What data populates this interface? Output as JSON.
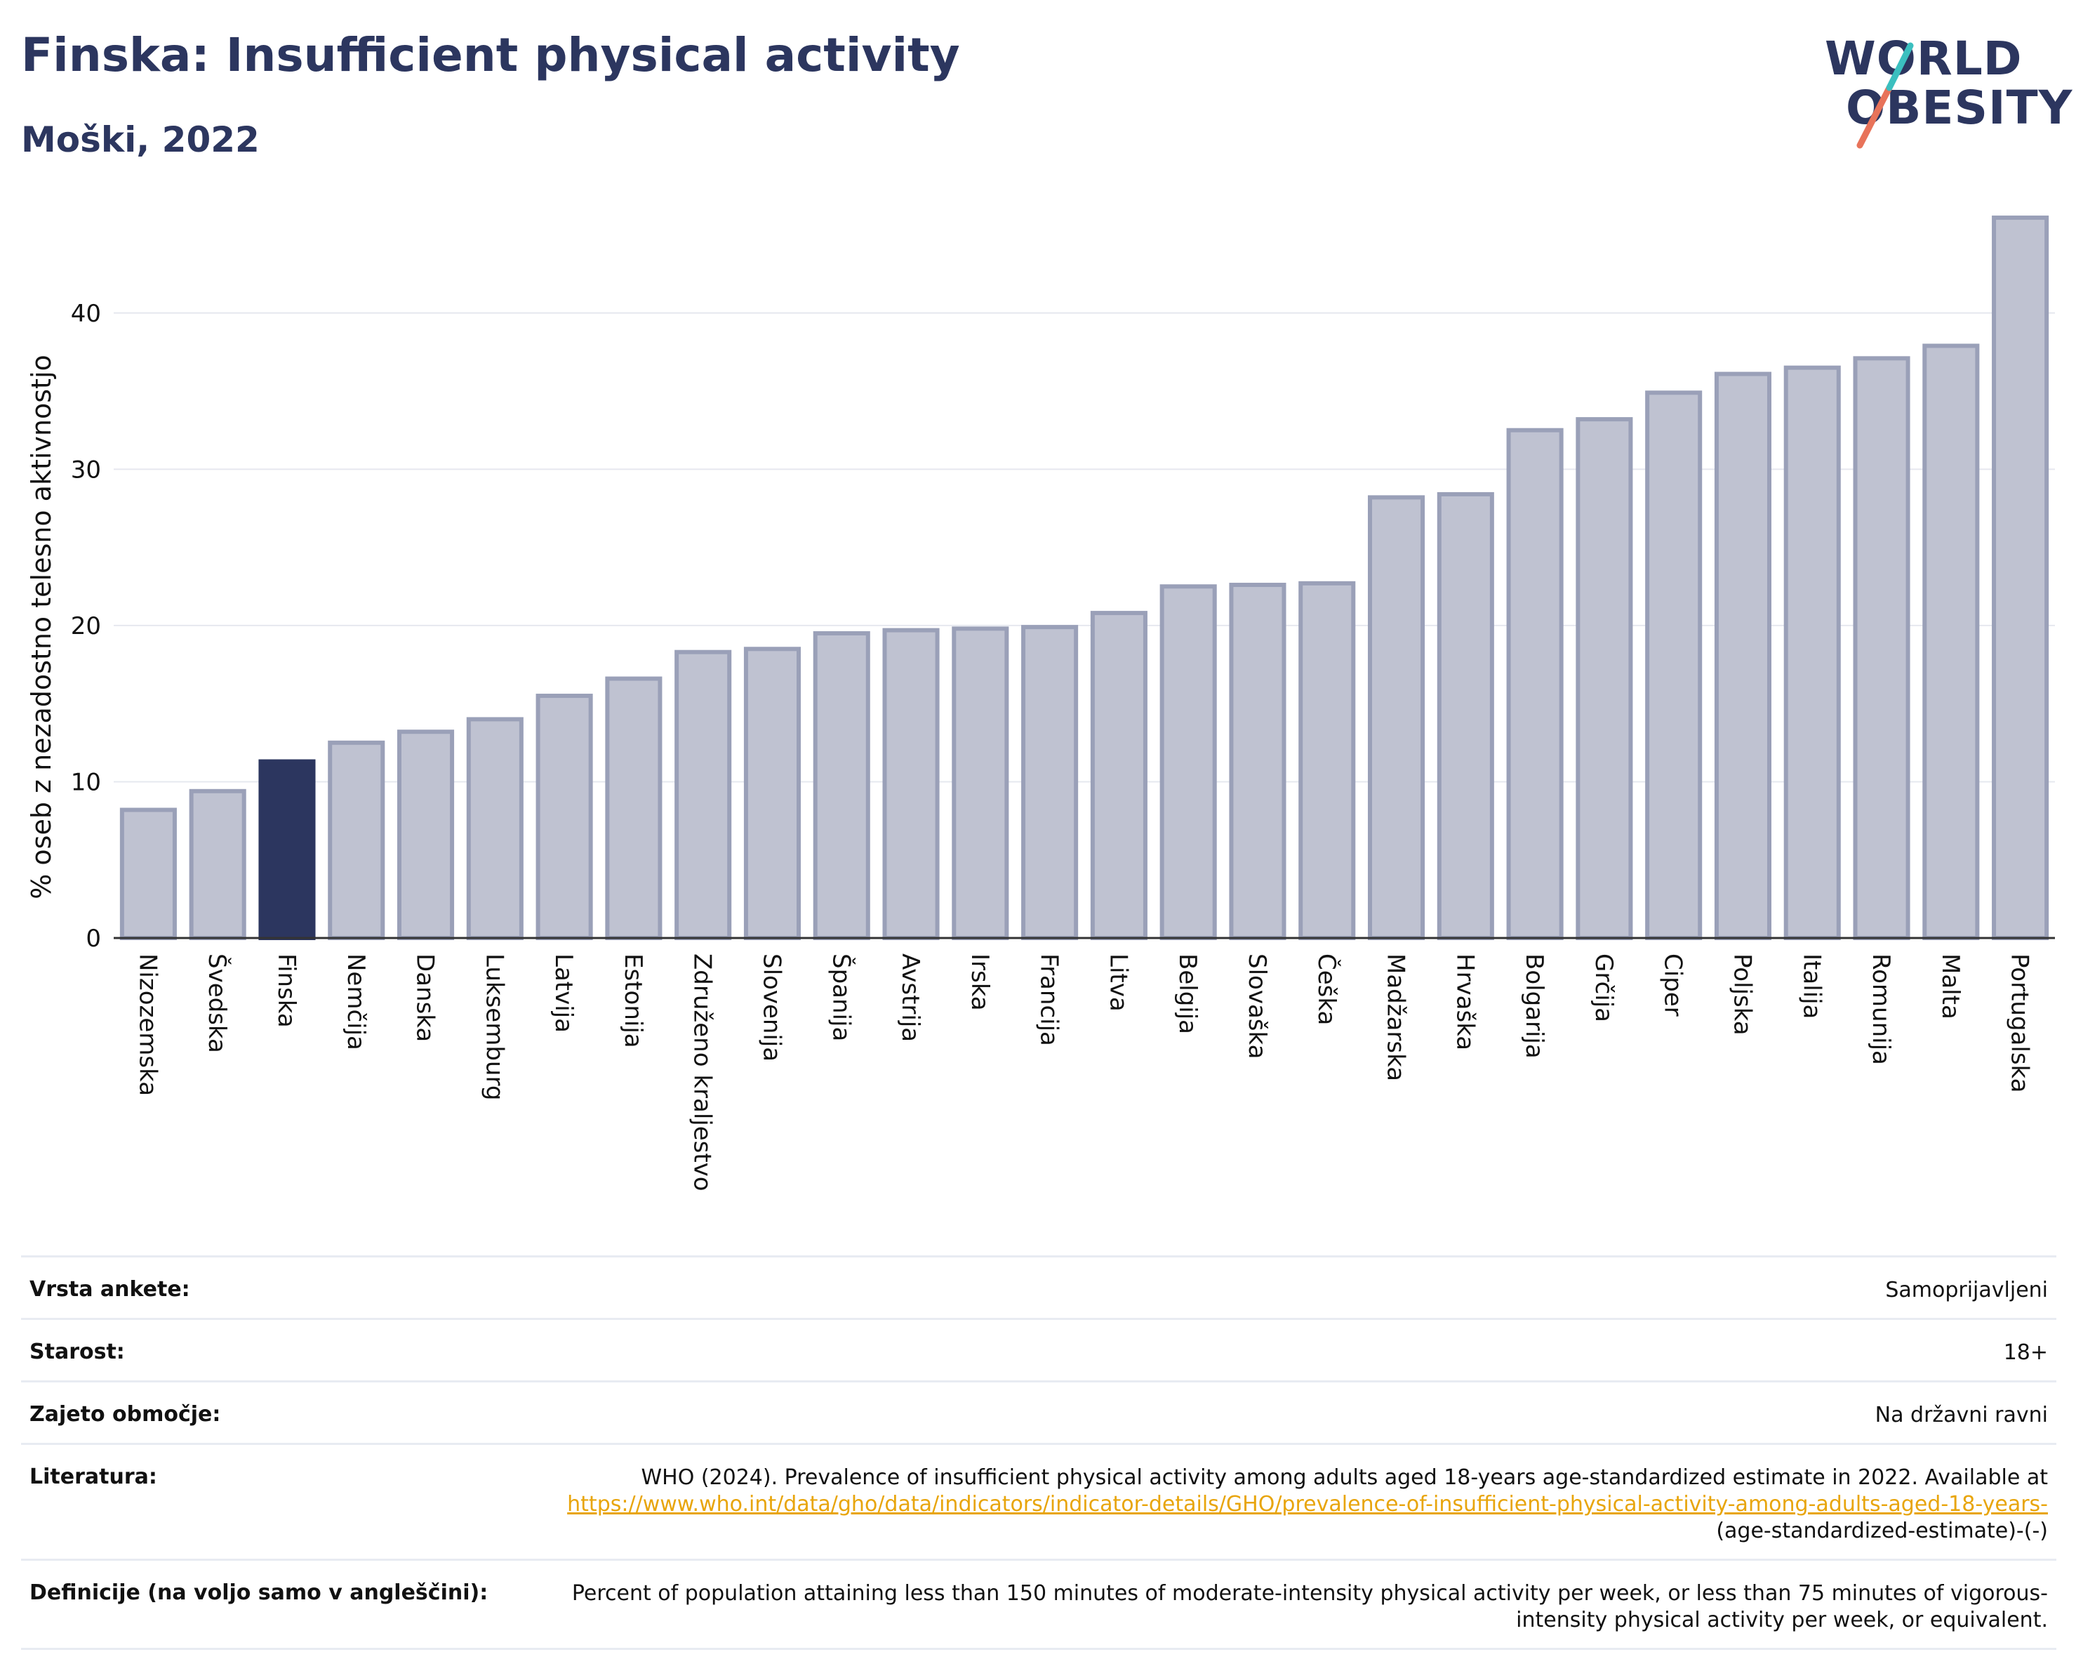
{
  "header": {
    "title": "Finska: Insufficient physical activity",
    "subtitle": "Moški, 2022"
  },
  "logo": {
    "line1": "WORLD",
    "line2": "OBESITY",
    "slash_colors": [
      "#e8735a",
      "#3bbfbf"
    ]
  },
  "chart_data": {
    "type": "bar",
    "ylabel": "% oseb z nezadostno telesno aktivnostjo",
    "ylim": [
      0,
      47
    ],
    "yticks": [
      0,
      10,
      20,
      30,
      40
    ],
    "grid": true,
    "highlight": "Finska",
    "highlight_color": "#2c365f",
    "bar_color": "#bfc2d1",
    "bar_border_color": "#9aa0b8",
    "categories": [
      "Nizozemska",
      "Švedska",
      "Finska",
      "Nemčija",
      "Danska",
      "Luksemburg",
      "Latvija",
      "Estonija",
      "Združeno kraljestvo",
      "Slovenija",
      "Španija",
      "Avstrija",
      "Irska",
      "Francija",
      "Litva",
      "Belgija",
      "Slovaška",
      "Češka",
      "Madžarska",
      "Hrvaška",
      "Bolgarija",
      "Grčija",
      "Ciper",
      "Poljska",
      "Italija",
      "Romunija",
      "Malta",
      "Portugalska"
    ],
    "values": [
      8.2,
      9.4,
      11.3,
      12.5,
      13.2,
      14.0,
      15.5,
      16.6,
      18.3,
      18.5,
      19.5,
      19.7,
      19.8,
      19.9,
      20.8,
      22.5,
      22.6,
      22.7,
      28.2,
      28.4,
      32.5,
      33.2,
      34.9,
      36.1,
      36.5,
      37.1,
      37.9,
      46.1
    ]
  },
  "metadata": [
    {
      "label": "Vrsta ankete:",
      "value": "Samoprijavljeni"
    },
    {
      "label": "Starost:",
      "value": "18+"
    },
    {
      "label": "Zajeto območje:",
      "value": "Na državni ravni"
    },
    {
      "label": "Literatura:",
      "value_prefix": "WHO (2024). Prevalence of insufficient physical activity among adults aged 18-years age-standardized estimate in 2022. Available at",
      "link": "https://www.who.int/data/gho/data/indicators/indicator-details/GHO/prevalence-of-insufficient-physical-activity-among-adults-aged-18-years-",
      "value_suffix": "(age-standardized-estimate)-(-)"
    },
    {
      "label": "Definicije (na voljo samo v angleščini):",
      "value": "Percent of population attaining less than 150 minutes of moderate-intensity physical activity per week, or less than 75 minutes of vigorous-intensity physical activity per week, or equivalent."
    }
  ]
}
